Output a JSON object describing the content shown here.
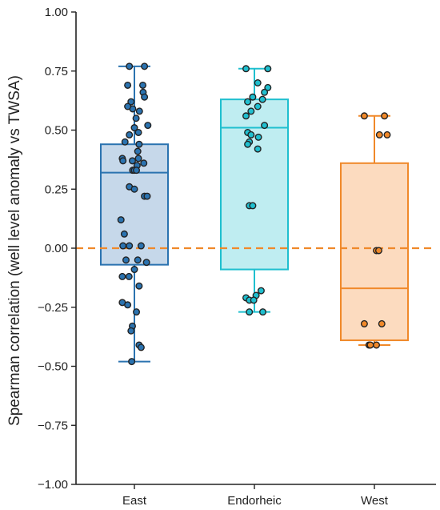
{
  "chart_data": {
    "type": "box",
    "title": "",
    "xlabel": "",
    "ylabel": "Spearman correlation (well level anomaly vs TWSA)",
    "ylim": [
      -1.0,
      1.0
    ],
    "yticks": [
      1.0,
      0.75,
      0.5,
      0.25,
      0.0,
      -0.25,
      -0.5,
      -0.75,
      -1.0
    ],
    "ytick_labels": [
      "1.00",
      "0.75",
      "0.50",
      "0.25",
      "0.00",
      "−0.25",
      "−0.50",
      "−0.75",
      "−1.00"
    ],
    "categories": [
      "East",
      "Endorheic",
      "West"
    ],
    "reference_line": {
      "y": 0.0,
      "style": "dashed",
      "color": "#f0892a"
    },
    "grid": false,
    "groups": [
      {
        "name": "East",
        "color": "#2b73b0",
        "fill": "#bcd1e6",
        "box": {
          "whisker_low": -0.48,
          "q1": -0.07,
          "median": 0.32,
          "q3": 0.44,
          "whisker_high": 0.77
        },
        "points": [
          {
            "x": -0.15,
            "y": 0.77
          },
          {
            "x": 0.3,
            "y": 0.77
          },
          {
            "x": -0.2,
            "y": 0.69
          },
          {
            "x": 0.25,
            "y": 0.69
          },
          {
            "x": 0.26,
            "y": 0.66
          },
          {
            "x": 0.3,
            "y": 0.64
          },
          {
            "x": -0.1,
            "y": 0.62
          },
          {
            "x": -0.05,
            "y": 0.59
          },
          {
            "x": -0.2,
            "y": 0.6
          },
          {
            "x": 0.15,
            "y": 0.58
          },
          {
            "x": 0.05,
            "y": 0.55
          },
          {
            "x": 0.4,
            "y": 0.52
          },
          {
            "x": 0.0,
            "y": 0.51
          },
          {
            "x": 0.12,
            "y": 0.49
          },
          {
            "x": -0.15,
            "y": 0.48
          },
          {
            "x": 0.14,
            "y": 0.44
          },
          {
            "x": -0.28,
            "y": 0.45
          },
          {
            "x": 0.1,
            "y": 0.41
          },
          {
            "x": 0.12,
            "y": 0.38
          },
          {
            "x": -0.36,
            "y": 0.38
          },
          {
            "x": -0.06,
            "y": 0.37
          },
          {
            "x": 0.28,
            "y": 0.36
          },
          {
            "x": -0.34,
            "y": 0.37
          },
          {
            "x": 0.08,
            "y": 0.35
          },
          {
            "x": -0.05,
            "y": 0.33
          },
          {
            "x": 0.0,
            "y": 0.33
          },
          {
            "x": 0.06,
            "y": 0.33
          },
          {
            "x": -0.15,
            "y": 0.26
          },
          {
            "x": 0.0,
            "y": 0.25
          },
          {
            "x": 0.3,
            "y": 0.22
          },
          {
            "x": 0.38,
            "y": 0.22
          },
          {
            "x": -0.4,
            "y": 0.12
          },
          {
            "x": -0.3,
            "y": 0.06
          },
          {
            "x": 0.2,
            "y": 0.01
          },
          {
            "x": -0.15,
            "y": 0.01
          },
          {
            "x": -0.34,
            "y": 0.01
          },
          {
            "x": 0.1,
            "y": -0.05
          },
          {
            "x": -0.25,
            "y": -0.05
          },
          {
            "x": 0.36,
            "y": -0.06
          },
          {
            "x": 0.0,
            "y": -0.09
          },
          {
            "x": -0.36,
            "y": -0.12
          },
          {
            "x": -0.16,
            "y": -0.12
          },
          {
            "x": 0.14,
            "y": -0.16
          },
          {
            "x": -0.36,
            "y": -0.23
          },
          {
            "x": -0.2,
            "y": -0.24
          },
          {
            "x": 0.06,
            "y": -0.27
          },
          {
            "x": -0.06,
            "y": -0.33
          },
          {
            "x": -0.1,
            "y": -0.35
          },
          {
            "x": 0.14,
            "y": -0.41
          },
          {
            "x": 0.2,
            "y": -0.42
          },
          {
            "x": -0.08,
            "y": -0.48
          }
        ]
      },
      {
        "name": "Endorheic",
        "color": "#1fbfcf",
        "fill": "#b4eaef",
        "box": {
          "whisker_low": -0.27,
          "q1": -0.09,
          "median": 0.51,
          "q3": 0.63,
          "whisker_high": 0.76
        },
        "points": [
          {
            "x": -0.25,
            "y": 0.76
          },
          {
            "x": 0.4,
            "y": 0.76
          },
          {
            "x": 0.1,
            "y": 0.7
          },
          {
            "x": 0.4,
            "y": 0.68
          },
          {
            "x": 0.3,
            "y": 0.66
          },
          {
            "x": -0.05,
            "y": 0.64
          },
          {
            "x": 0.24,
            "y": 0.63
          },
          {
            "x": -0.2,
            "y": 0.62
          },
          {
            "x": 0.1,
            "y": 0.6
          },
          {
            "x": -0.1,
            "y": 0.58
          },
          {
            "x": -0.25,
            "y": 0.56
          },
          {
            "x": 0.3,
            "y": 0.52
          },
          {
            "x": -0.2,
            "y": 0.49
          },
          {
            "x": -0.1,
            "y": 0.48
          },
          {
            "x": 0.12,
            "y": 0.47
          },
          {
            "x": -0.15,
            "y": 0.45
          },
          {
            "x": -0.2,
            "y": 0.44
          },
          {
            "x": 0.1,
            "y": 0.42
          },
          {
            "x": -0.15,
            "y": 0.18
          },
          {
            "x": -0.05,
            "y": 0.18
          },
          {
            "x": 0.2,
            "y": -0.18
          },
          {
            "x": 0.05,
            "y": -0.2
          },
          {
            "x": -0.25,
            "y": -0.21
          },
          {
            "x": -0.15,
            "y": -0.22
          },
          {
            "x": -0.02,
            "y": -0.22
          },
          {
            "x": -0.15,
            "y": -0.27
          },
          {
            "x": 0.25,
            "y": -0.27
          }
        ]
      },
      {
        "name": "West",
        "color": "#f0892a",
        "fill": "#fcd5b4",
        "box": {
          "whisker_low": -0.41,
          "q1": -0.39,
          "median": -0.17,
          "q3": 0.36,
          "whisker_high": 0.56
        },
        "points": [
          {
            "x": -0.3,
            "y": 0.56
          },
          {
            "x": 0.3,
            "y": 0.56
          },
          {
            "x": 0.15,
            "y": 0.48
          },
          {
            "x": 0.38,
            "y": 0.48
          },
          {
            "x": 0.06,
            "y": -0.01
          },
          {
            "x": 0.13,
            "y": -0.01
          },
          {
            "x": -0.3,
            "y": -0.32
          },
          {
            "x": 0.22,
            "y": -0.32
          },
          {
            "x": -0.16,
            "y": -0.41
          },
          {
            "x": 0.06,
            "y": -0.41
          },
          {
            "x": -0.12,
            "y": -0.41
          }
        ]
      }
    ]
  }
}
